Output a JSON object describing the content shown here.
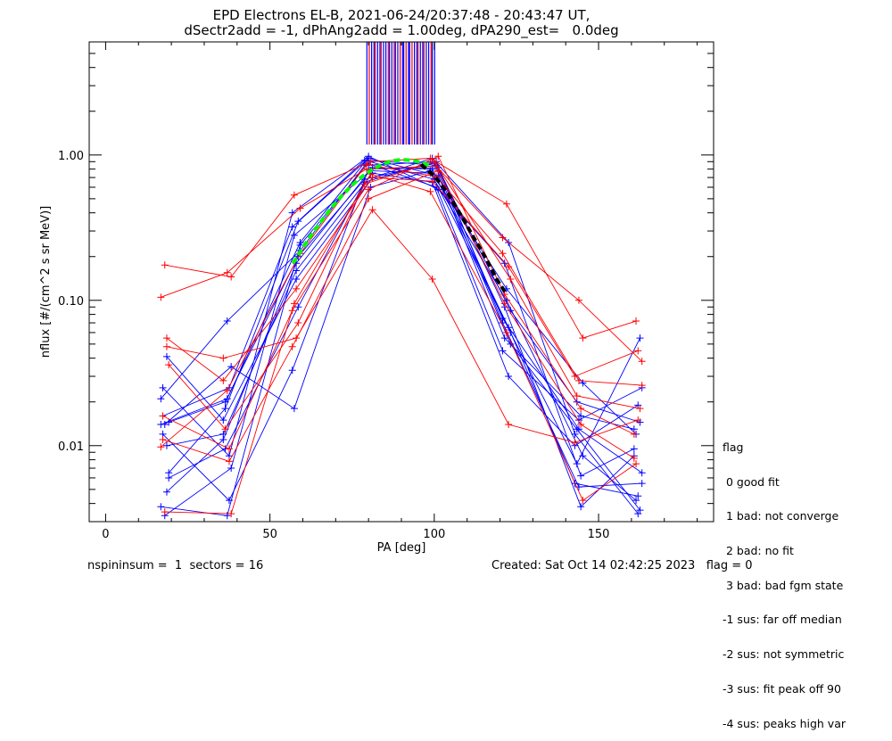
{
  "title_line1": "EPD Electrons EL-B, 2021-06-24/20:37:48 - 20:43:47 UT,",
  "title_line2": "dSectr2add = -1, dPhAng2add = 1.00deg, dPA290_est=   0.0deg",
  "footer_left": "nspininsum =  1  sectors = 16",
  "footer_right": "Created: Sat Oct 14 02:42:25 2023   flag = 0",
  "flag_legend": {
    "heading": "flag",
    "items": [
      " 0 good fit",
      " 1 bad: not converge",
      " 2 bad: no fit",
      " 3 bad: bad fgm state",
      "-1 sus: far off median",
      "-2 sus: not symmetric",
      "-3 sus: fit peak off 90",
      "-4 sus: peaks high var"
    ]
  },
  "colors": {
    "blue": "#0000ff",
    "red": "#ff0000",
    "green": "#00ff00",
    "black": "#000000"
  },
  "chart_data": {
    "type": "line",
    "xlabel": "PA [deg]",
    "ylabel": "nflux [#/(cm^2 s sr MeV)]",
    "xlim": [
      -5,
      185
    ],
    "ylim": [
      0.003,
      6.0
    ],
    "yscale": "log",
    "xticks": [
      "0",
      "50",
      "100",
      "150"
    ],
    "yticks": [
      "0.01",
      "0.10",
      "1.00"
    ],
    "pa_bins": [
      18,
      37,
      58,
      80,
      100,
      122,
      144,
      162
    ],
    "series": [
      {
        "color": "blue",
        "values": [
          0.014,
          0.021,
          0.25,
          0.92,
          0.85,
          0.075,
          0.013,
          0.0065
        ]
      },
      {
        "color": "blue",
        "values": [
          0.0048,
          0.011,
          0.18,
          0.82,
          0.8,
          0.065,
          0.0055,
          0.0045
        ]
      },
      {
        "color": "blue",
        "values": [
          0.016,
          0.025,
          0.32,
          0.95,
          0.72,
          0.055,
          0.016,
          0.013
        ]
      },
      {
        "color": "blue",
        "values": [
          0.006,
          0.0095,
          0.09,
          0.65,
          0.9,
          0.085,
          0.02,
          0.0145
        ]
      },
      {
        "color": "blue",
        "values": [
          0.0033,
          0.007,
          0.28,
          0.78,
          0.75,
          0.1,
          0.0085,
          0.0042
        ]
      },
      {
        "color": "blue",
        "values": [
          0.021,
          0.072,
          0.22,
          0.88,
          0.6,
          0.045,
          0.015,
          0.025
        ]
      },
      {
        "color": "blue",
        "values": [
          0.041,
          0.015,
          0.14,
          0.7,
          0.95,
          0.25,
          0.012,
          0.0034
        ]
      },
      {
        "color": "blue",
        "values": [
          0.012,
          0.0042,
          0.033,
          0.8,
          0.82,
          0.09,
          0.0038,
          0.0085
        ]
      },
      {
        "color": "blue",
        "values": [
          0.0065,
          0.018,
          0.35,
          0.92,
          0.68,
          0.06,
          0.0075,
          0.055
        ]
      },
      {
        "color": "blue",
        "values": [
          0.014,
          0.035,
          0.018,
          0.6,
          0.78,
          0.12,
          0.027,
          0.012
        ]
      },
      {
        "color": "blue",
        "values": [
          0.0038,
          0.0033,
          0.24,
          0.85,
          0.9,
          0.07,
          0.0052,
          0.0055
        ]
      },
      {
        "color": "blue",
        "values": [
          0.01,
          0.012,
          0.16,
          0.75,
          0.65,
          0.03,
          0.01,
          0.019
        ]
      },
      {
        "color": "blue",
        "values": [
          0.025,
          0.0085,
          0.4,
          0.98,
          0.58,
          0.18,
          0.0062,
          0.0095
        ]
      },
      {
        "color": "blue",
        "values": [
          0.0145,
          0.02,
          0.2,
          0.68,
          0.88,
          0.05,
          0.013,
          0.0036
        ]
      },
      {
        "color": "red",
        "values": [
          0.175,
          0.145,
          0.53,
          0.9,
          0.95,
          0.46,
          0.055,
          0.072
        ]
      },
      {
        "color": "red",
        "values": [
          0.105,
          0.155,
          0.43,
          0.8,
          0.84,
          0.27,
          0.1,
          0.038
        ]
      },
      {
        "color": "red",
        "values": [
          0.055,
          0.028,
          0.12,
          0.7,
          0.66,
          0.17,
          0.03,
          0.045
        ]
      },
      {
        "color": "red",
        "values": [
          0.011,
          0.0078,
          0.048,
          0.5,
          0.78,
          0.095,
          0.014,
          0.0082
        ]
      },
      {
        "color": "red",
        "values": [
          0.036,
          0.013,
          0.07,
          0.63,
          0.9,
          0.14,
          0.022,
          0.018
        ]
      },
      {
        "color": "red",
        "values": [
          0.0035,
          0.0034,
          0.095,
          0.74,
          0.56,
          0.06,
          0.0042,
          0.0075
        ]
      },
      {
        "color": "red",
        "values": [
          0.0098,
          0.024,
          0.21,
          0.86,
          0.71,
          0.21,
          0.028,
          0.026
        ]
      },
      {
        "color": "red",
        "values": [
          0.048,
          0.04,
          0.055,
          0.42,
          0.14,
          0.014,
          0.0105,
          0.015
        ]
      },
      {
        "color": "red",
        "values": [
          0.016,
          0.0095,
          0.085,
          0.58,
          0.98,
          0.11,
          0.018,
          0.012
        ]
      }
    ],
    "fit_curve": {
      "color": "green",
      "style": "dashed",
      "x": [
        57,
        60,
        63,
        66,
        69,
        72,
        75,
        78,
        81,
        84,
        87,
        90,
        93,
        96,
        99
      ],
      "values": [
        0.18,
        0.23,
        0.29,
        0.36,
        0.44,
        0.53,
        0.62,
        0.71,
        0.79,
        0.86,
        0.91,
        0.93,
        0.92,
        0.89,
        0.84
      ]
    },
    "median_curve": {
      "color": "black",
      "style": "dashed",
      "x": [
        96,
        100,
        104,
        108,
        112,
        116,
        119,
        122
      ],
      "values": [
        0.86,
        0.72,
        0.55,
        0.39,
        0.27,
        0.19,
        0.14,
        0.11
      ]
    }
  }
}
